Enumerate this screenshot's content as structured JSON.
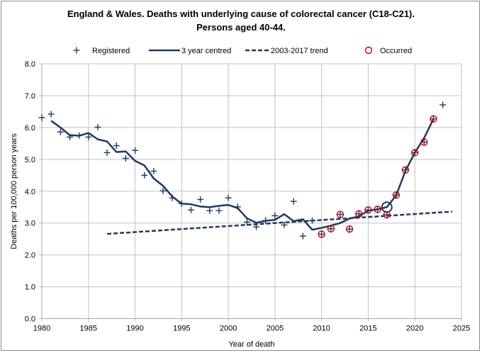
{
  "chart_data": {
    "type": "line",
    "title_line1": "England & Wales. Deaths with underlying cause of colorectal cancer (C18-C21).",
    "title_line2": "Persons aged 40-44.",
    "xlabel": "Year of death",
    "ylabel": "Deaths per 100,000 person years",
    "xlim": [
      1980,
      2025
    ],
    "ylim": [
      0,
      8
    ],
    "xticks": [
      1980,
      1985,
      1990,
      1995,
      2000,
      2005,
      2010,
      2015,
      2020,
      2025
    ],
    "yticks": [
      "0.0",
      "1.0",
      "2.0",
      "3.0",
      "4.0",
      "5.0",
      "6.0",
      "7.0",
      "8.0"
    ],
    "grid": true,
    "legend_position": "top",
    "colors": {
      "series": "#1f3a5f",
      "occurred": "#cc0000",
      "grid": "#c0c0c0",
      "axis": "#a6a6a6"
    },
    "series": [
      {
        "name": "Registered",
        "style": "plus-marker",
        "x": [
          1980,
          1981,
          1982,
          1983,
          1984,
          1985,
          1986,
          1987,
          1988,
          1989,
          1990,
          1991,
          1992,
          1993,
          1994,
          1995,
          1996,
          1997,
          1998,
          1999,
          2000,
          2001,
          2002,
          2003,
          2004,
          2005,
          2006,
          2007,
          2008,
          2009,
          2010,
          2011,
          2012,
          2013,
          2014,
          2015,
          2016,
          2017,
          2018,
          2019,
          2020,
          2021,
          2022,
          2023
        ],
        "values": [
          6.31,
          6.42,
          5.86,
          5.7,
          5.75,
          5.7,
          6.01,
          5.21,
          5.43,
          5.03,
          5.28,
          4.5,
          4.63,
          4.01,
          3.79,
          3.61,
          3.41,
          3.74,
          3.39,
          3.39,
          3.79,
          3.51,
          3.03,
          2.88,
          3.08,
          3.23,
          2.94,
          3.68,
          2.59,
          3.08,
          2.65,
          2.82,
          3.27,
          2.81,
          3.29,
          3.41,
          3.43,
          3.26,
          3.88,
          4.67,
          5.21,
          5.54,
          6.27,
          6.71
        ]
      },
      {
        "name": "3 year centred",
        "style": "solid-line",
        "x": [
          1981,
          1982,
          1983,
          1984,
          1985,
          1986,
          1987,
          1988,
          1989,
          1990,
          1991,
          1992,
          1993,
          1994,
          1995,
          1996,
          1997,
          1998,
          1999,
          2000,
          2001,
          2002,
          2003,
          2004,
          2005,
          2006,
          2007,
          2008,
          2009,
          2010,
          2011,
          2012,
          2013,
          2014,
          2015,
          2016,
          2017,
          2018,
          2019,
          2020,
          2021,
          2022
        ],
        "values": [
          6.21,
          6.0,
          5.76,
          5.74,
          5.83,
          5.63,
          5.56,
          5.23,
          5.25,
          4.95,
          4.81,
          4.4,
          4.17,
          3.83,
          3.61,
          3.59,
          3.52,
          3.5,
          3.54,
          3.57,
          3.47,
          3.15,
          3.01,
          3.07,
          3.1,
          3.28,
          3.06,
          3.12,
          2.79,
          2.85,
          2.92,
          3.0,
          3.14,
          3.21,
          3.39,
          3.43,
          3.5,
          3.87,
          4.64,
          5.21,
          5.67,
          6.27
        ],
        "highlight": {
          "x": 2017,
          "value": 3.5
        }
      },
      {
        "name": "2003-2017 trend",
        "style": "dashed-line",
        "x": [
          1987,
          2024
        ],
        "values": [
          2.66,
          3.36
        ]
      },
      {
        "name": "Occurred",
        "style": "circle-marker",
        "x": [
          2010,
          2011,
          2012,
          2013,
          2014,
          2015,
          2016,
          2017,
          2018,
          2019,
          2020,
          2021,
          2022
        ],
        "values": [
          2.65,
          2.82,
          3.27,
          2.81,
          3.29,
          3.41,
          3.43,
          3.26,
          3.88,
          4.67,
          5.21,
          5.54,
          6.27
        ]
      }
    ]
  }
}
